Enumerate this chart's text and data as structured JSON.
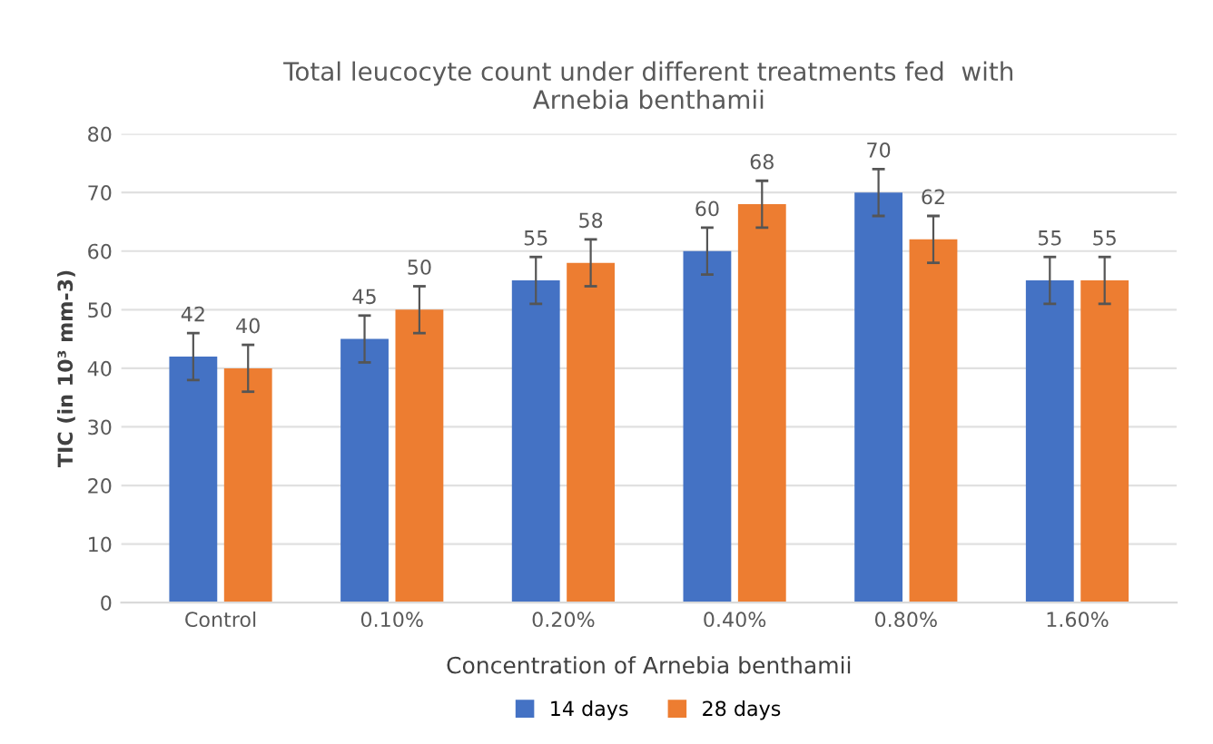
{
  "chart_data": {
    "type": "bar",
    "title": "Total leucocyte count under different treatments fed  with\nArnebia benthamii",
    "xlabel": "Concentration of Arnebia benthamii",
    "ylabel": "TIC (in 10³ mm-3)",
    "categories": [
      "Control",
      "0.10%",
      "0.20%",
      "0.40%",
      "0.80%",
      "1.60%"
    ],
    "series": [
      {
        "name": "14 days",
        "color": "#4472c4",
        "values": [
          42,
          45,
          55,
          60,
          70,
          55
        ],
        "errors": [
          4,
          4,
          4,
          4,
          4,
          4
        ]
      },
      {
        "name": "28 days",
        "color": "#ed7d31",
        "values": [
          40,
          50,
          58,
          68,
          62,
          55
        ],
        "errors": [
          4,
          4,
          4,
          4,
          4,
          4
        ]
      }
    ],
    "ylim": [
      0,
      80
    ],
    "yticks": [
      0,
      10,
      20,
      30,
      40,
      50,
      60,
      70,
      80
    ],
    "grid": "y",
    "legend": "bottom",
    "data_labels": true
  }
}
